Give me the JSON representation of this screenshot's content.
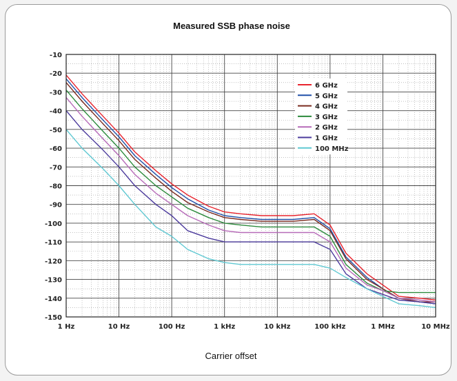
{
  "chart_data": {
    "type": "line",
    "title": "Measured SSB phase noise",
    "xlabel": "Carrier offset",
    "ylabel": "",
    "x_scale": "log",
    "xlim": [
      1,
      10000000
    ],
    "ylim": [
      -150,
      -10
    ],
    "x_ticks": [
      {
        "value": 1,
        "label": "1 Hz"
      },
      {
        "value": 10,
        "label": "10 Hz"
      },
      {
        "value": 100,
        "label": "100 Hz"
      },
      {
        "value": 1000,
        "label": "1 kHz"
      },
      {
        "value": 10000,
        "label": "10 kHz"
      },
      {
        "value": 100000,
        "label": "100 kHz"
      },
      {
        "value": 1000000,
        "label": "1 MHz"
      },
      {
        "value": 10000000,
        "label": "10 MHz"
      }
    ],
    "y_ticks": [
      "-10",
      "-20",
      "-30",
      "-40",
      "-50",
      "-60",
      "-70",
      "-80",
      "-90",
      "-100",
      "-110",
      "-120",
      "-130",
      "-140",
      "-150"
    ],
    "grid": true,
    "legend_position": "top-right",
    "x": [
      1,
      2,
      5,
      10,
      20,
      50,
      100,
      200,
      500,
      1000,
      2000,
      5000,
      10000,
      20000,
      50000,
      100000,
      200000,
      500000,
      1000000,
      2000000,
      5000000,
      10000000
    ],
    "series": [
      {
        "name": "6 GHz",
        "color": "#e8232d",
        "values": [
          -21,
          -31,
          -43,
          -52,
          -62,
          -72,
          -79,
          -85,
          -91,
          -94,
          -95,
          -96,
          -96,
          -96,
          -95,
          -101,
          -116,
          -127,
          -133,
          -139,
          -140,
          -141
        ]
      },
      {
        "name": "5 GHz",
        "color": "#1f4fa8",
        "values": [
          -23,
          -33,
          -45,
          -54,
          -64,
          -74,
          -81,
          -87,
          -93,
          -96,
          -97,
          -98,
          -98,
          -98,
          -97,
          -103,
          -118,
          -129,
          -135,
          -140,
          -142,
          -143
        ]
      },
      {
        "name": "4 GHz",
        "color": "#7a2a1f",
        "values": [
          -25,
          -35,
          -47,
          -56,
          -66,
          -76,
          -83,
          -89,
          -94,
          -97,
          -98,
          -99,
          -99,
          -99,
          -98,
          -104,
          -119,
          -130,
          -135,
          -140,
          -142,
          -142
        ]
      },
      {
        "name": "3 GHz",
        "color": "#2c8a3c",
        "values": [
          -29,
          -39,
          -51,
          -60,
          -70,
          -80,
          -86,
          -92,
          -97,
          -100,
          -101,
          -102,
          -102,
          -102,
          -102,
          -107,
          -122,
          -132,
          -136,
          -137,
          -137,
          -137
        ]
      },
      {
        "name": "2 GHz",
        "color": "#b66ab8",
        "values": [
          -33,
          -43,
          -55,
          -64,
          -74,
          -84,
          -90,
          -96,
          -101,
          -104,
          -105,
          -105,
          -105,
          -105,
          -105,
          -110,
          -124,
          -133,
          -136,
          -140,
          -141,
          -142
        ]
      },
      {
        "name": "1 GHz",
        "color": "#4b3a9c",
        "values": [
          -40,
          -50,
          -61,
          -70,
          -80,
          -90,
          -96,
          -104,
          -108,
          -110,
          -110,
          -110,
          -110,
          -110,
          -110,
          -114,
          -127,
          -135,
          -138,
          -141,
          -142,
          -143
        ]
      },
      {
        "name": "100 MHz",
        "color": "#5fc8d2",
        "values": [
          -50,
          -60,
          -71,
          -80,
          -90,
          -102,
          -107,
          -114,
          -119,
          -121,
          -122,
          -122,
          -122,
          -122,
          -122,
          -124,
          -129,
          -135,
          -139,
          -143,
          -144,
          -145
        ]
      }
    ]
  }
}
